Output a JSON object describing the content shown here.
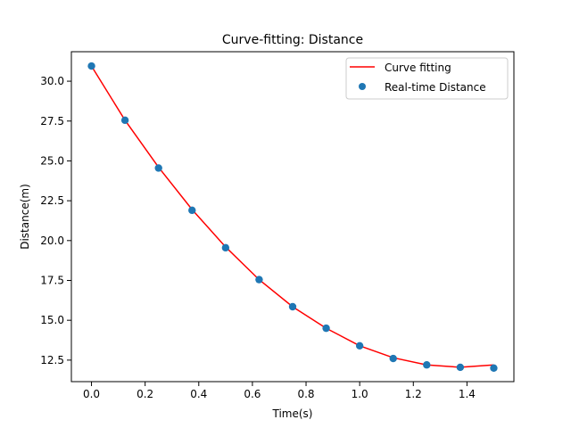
{
  "chart_data": {
    "type": "line",
    "title": "Curve-fitting: Distance",
    "xlabel": "Time(s)",
    "ylabel": "Distance(m)",
    "xlim": [
      -0.075,
      1.575
    ],
    "ylim": [
      11.15,
      31.85
    ],
    "xticks": [
      0.0,
      0.2,
      0.4,
      0.6,
      0.8,
      1.0,
      1.2,
      1.4
    ],
    "xtick_labels": [
      "0.0",
      "0.2",
      "0.4",
      "0.6",
      "0.8",
      "1.0",
      "1.2",
      "1.4"
    ],
    "yticks": [
      12.5,
      15.0,
      17.5,
      20.0,
      22.5,
      25.0,
      27.5,
      30.0
    ],
    "ytick_labels": [
      "12.5",
      "15.0",
      "17.5",
      "20.0",
      "22.5",
      "25.0",
      "27.5",
      "30.0"
    ],
    "grid": false,
    "legend_position": "top-right",
    "series": [
      {
        "name": "Curve fitting",
        "kind": "line",
        "color": "#ff0000",
        "x": [
          0.0,
          0.125,
          0.25,
          0.375,
          0.5,
          0.625,
          0.75,
          0.875,
          1.0,
          1.125,
          1.25,
          1.375,
          1.5
        ],
        "y": [
          30.95,
          27.55,
          24.6,
          21.95,
          19.6,
          17.55,
          15.85,
          14.5,
          13.4,
          12.65,
          12.2,
          12.05,
          12.2
        ]
      },
      {
        "name": "Real-time Distance",
        "kind": "scatter",
        "color": "#1f77b4",
        "x": [
          0.0,
          0.125,
          0.25,
          0.375,
          0.5,
          0.625,
          0.75,
          0.875,
          1.0,
          1.125,
          1.25,
          1.375,
          1.5
        ],
        "y": [
          30.95,
          27.55,
          24.55,
          21.9,
          19.55,
          17.55,
          15.85,
          14.5,
          13.4,
          12.6,
          12.2,
          12.05,
          12.0
        ]
      }
    ]
  }
}
